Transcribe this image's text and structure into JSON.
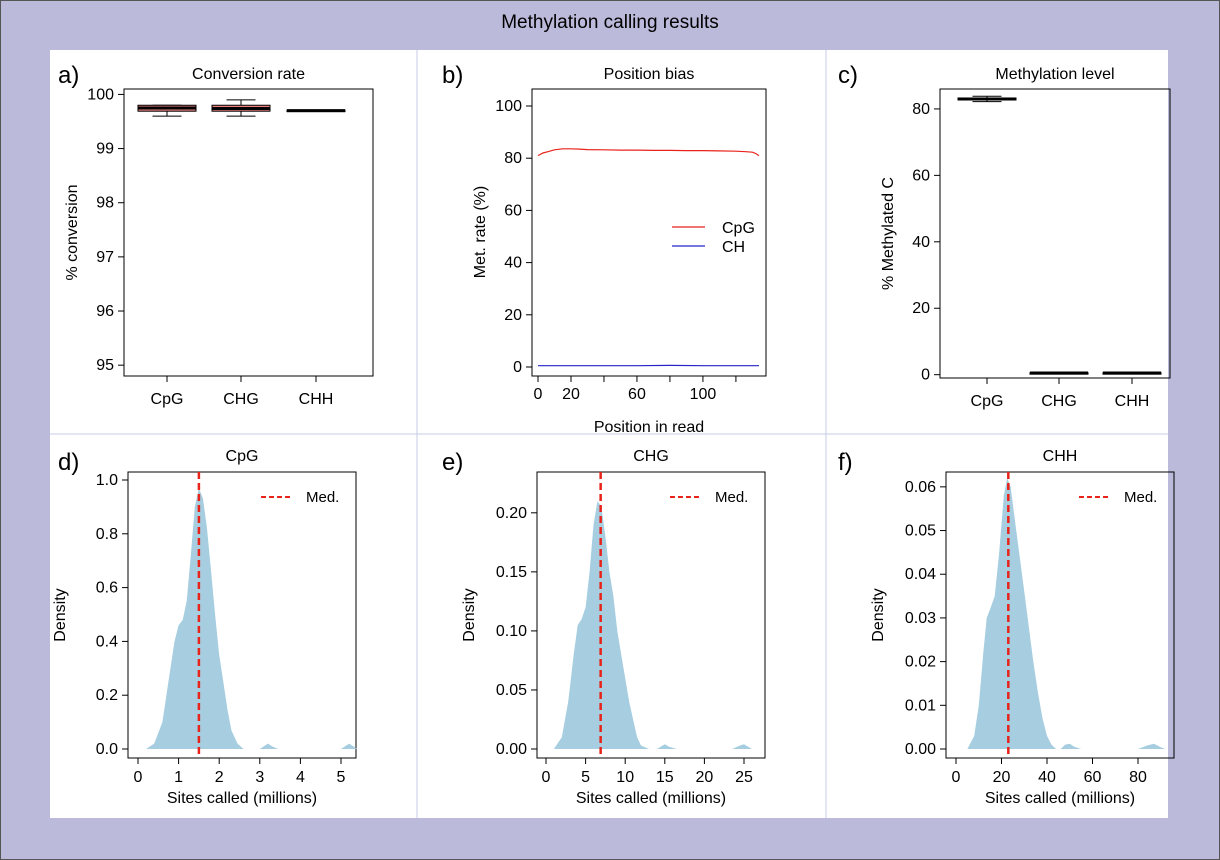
{
  "title": "Methylation calling results",
  "colors": {
    "frame_bg": "#bcbadb",
    "box_fill": "#f08080",
    "cpg_line": "#e8231a",
    "ch_line": "#2424c8",
    "density_fill": "#a6cee0",
    "median_line": "#e8231a"
  },
  "chart_data": [
    {
      "panel": "a)",
      "type": "box",
      "title": "Conversion rate",
      "xlabel": "",
      "ylabel": "% conversion",
      "categories": [
        "CpG",
        "CHG",
        "CHH"
      ],
      "ylim": [
        94.8,
        100.1
      ],
      "yticks": [
        95,
        96,
        97,
        98,
        99,
        100
      ],
      "boxes": [
        {
          "name": "CpG",
          "min": 99.6,
          "q1": 99.69,
          "median": 99.75,
          "q3": 99.8,
          "max": 99.8
        },
        {
          "name": "CHG",
          "min": 99.6,
          "q1": 99.69,
          "median": 99.74,
          "q3": 99.8,
          "max": 99.9
        },
        {
          "name": "CHH",
          "min": 99.69,
          "q1": 99.69,
          "median": 99.7,
          "q3": 99.71,
          "max": 99.71
        }
      ]
    },
    {
      "panel": "b)",
      "type": "line",
      "title": "Position bias",
      "xlabel": "Position in read",
      "ylabel": "Met. rate (%)",
      "xlim": [
        0,
        134
      ],
      "ylim": [
        0,
        100
      ],
      "xticks": [
        0,
        20,
        60,
        100
      ],
      "xtick_marks": [
        0,
        20,
        40,
        60,
        80,
        100,
        120
      ],
      "yticks": [
        0,
        20,
        40,
        60,
        80,
        100
      ],
      "legend": {
        "position": "right",
        "entries": [
          "CpG",
          "CH"
        ]
      },
      "series": [
        {
          "name": "CpG",
          "color": "#e8231a",
          "x": [
            0,
            3,
            6,
            10,
            15,
            20,
            25,
            30,
            40,
            50,
            60,
            70,
            80,
            90,
            100,
            110,
            120,
            126,
            130,
            132,
            134
          ],
          "y": [
            81,
            82,
            82.5,
            83.2,
            83.6,
            83.6,
            83.5,
            83.3,
            83.2,
            83.1,
            83.1,
            83.0,
            83.0,
            82.9,
            82.9,
            82.8,
            82.7,
            82.5,
            82.3,
            81.8,
            81
          ]
        },
        {
          "name": "CH",
          "color": "#2424c8",
          "x": [
            0,
            20,
            40,
            60,
            80,
            100,
            120,
            134
          ],
          "y": [
            0.5,
            0.5,
            0.5,
            0.5,
            0.6,
            0.5,
            0.5,
            0.5
          ]
        }
      ]
    },
    {
      "panel": "c)",
      "type": "box",
      "title": "Methylation level",
      "xlabel": "",
      "ylabel": "% Methylated C",
      "categories": [
        "CpG",
        "CHG",
        "CHH"
      ],
      "ylim": [
        -1,
        86
      ],
      "yticks": [
        0,
        20,
        40,
        60,
        80
      ],
      "boxes": [
        {
          "name": "CpG",
          "min": 82.2,
          "q1": 82.7,
          "median": 83.0,
          "q3": 83.3,
          "max": 83.8
        },
        {
          "name": "CHG",
          "min": 0.3,
          "q1": 0.4,
          "median": 0.5,
          "q3": 0.6,
          "max": 0.7
        },
        {
          "name": "CHH",
          "min": 0.3,
          "q1": 0.4,
          "median": 0.5,
          "q3": 0.6,
          "max": 0.7
        }
      ]
    },
    {
      "panel": "d)",
      "type": "area",
      "title": "CpG",
      "xlabel": "Sites called (millions)",
      "ylabel": "Density",
      "xlim": [
        -0.3,
        5.6
      ],
      "ylim": [
        0,
        1.0
      ],
      "xticks": [
        0,
        1,
        2,
        3,
        4,
        5
      ],
      "yticks": [
        0.0,
        0.2,
        0.4,
        0.6,
        0.8,
        1.0
      ],
      "ytick_labels": [
        "0.0",
        "0.2",
        "0.4",
        "0.6",
        "0.8",
        "1.0"
      ],
      "median": 1.5,
      "legend": {
        "position": "top-right",
        "entries": [
          "Med."
        ]
      },
      "x": [
        0.2,
        0.4,
        0.6,
        0.75,
        0.9,
        1.0,
        1.1,
        1.2,
        1.3,
        1.4,
        1.5,
        1.6,
        1.7,
        1.8,
        1.9,
        2.0,
        2.1,
        2.2,
        2.3,
        2.45,
        2.6,
        2.8,
        3.0,
        3.1,
        3.2,
        3.3,
        3.45,
        3.7,
        4.5,
        5.0,
        5.1,
        5.2,
        5.3,
        5.4
      ],
      "y": [
        0.0,
        0.02,
        0.1,
        0.25,
        0.4,
        0.46,
        0.48,
        0.55,
        0.72,
        0.9,
        0.97,
        0.93,
        0.82,
        0.66,
        0.5,
        0.35,
        0.25,
        0.15,
        0.07,
        0.02,
        0.0,
        0.0,
        0.0,
        0.01,
        0.02,
        0.01,
        0.0,
        0.0,
        0.0,
        0.0,
        0.01,
        0.02,
        0.01,
        0.0
      ]
    },
    {
      "panel": "e)",
      "type": "area",
      "title": "CHG",
      "xlabel": "Sites called (millions)",
      "ylabel": "Density",
      "xlim": [
        -1.5,
        27
      ],
      "ylim": [
        0,
        0.21
      ],
      "xticks": [
        0,
        5,
        10,
        15,
        20,
        25
      ],
      "yticks": [
        0.0,
        0.05,
        0.1,
        0.15,
        0.2
      ],
      "ytick_labels": [
        "0.00",
        "0.05",
        "0.10",
        "0.15",
        "0.20"
      ],
      "median": 6.9,
      "legend": {
        "position": "top-right",
        "entries": [
          "Med."
        ]
      },
      "x": [
        1.0,
        2.0,
        2.8,
        3.5,
        4.0,
        4.5,
        5.0,
        5.5,
        6.0,
        6.5,
        7.0,
        7.5,
        8.0,
        8.5,
        9.0,
        9.5,
        10.0,
        10.5,
        11.0,
        11.5,
        12.0,
        13.0,
        14.0,
        14.5,
        15.0,
        15.5,
        16.5,
        23.5,
        24.5,
        25.0,
        25.5,
        26.0
      ],
      "y": [
        0.0,
        0.01,
        0.04,
        0.08,
        0.105,
        0.11,
        0.12,
        0.15,
        0.19,
        0.21,
        0.205,
        0.18,
        0.15,
        0.13,
        0.1,
        0.08,
        0.06,
        0.04,
        0.025,
        0.01,
        0.003,
        0.0,
        0.0,
        0.002,
        0.004,
        0.002,
        0.0,
        0.0,
        0.003,
        0.004,
        0.002,
        0.0
      ]
    },
    {
      "panel": "f)",
      "type": "area",
      "title": "CHH",
      "xlabel": "Sites called (millions)",
      "ylabel": "Density",
      "xlim": [
        -5,
        94
      ],
      "ylim": [
        0,
        0.065
      ],
      "xticks": [
        0,
        20,
        40,
        60,
        80
      ],
      "yticks": [
        0.0,
        0.01,
        0.02,
        0.03,
        0.04,
        0.05,
        0.06
      ],
      "ytick_labels": [
        "0.00",
        "0.01",
        "0.02",
        "0.03",
        "0.04",
        "0.05",
        "0.06"
      ],
      "median": 23,
      "legend": {
        "position": "top-right",
        "entries": [
          "Med."
        ]
      },
      "x": [
        5,
        8,
        10,
        12,
        13.5,
        15,
        17,
        19,
        21,
        22.5,
        24,
        26,
        28,
        30,
        32,
        34,
        36,
        38,
        40,
        42,
        44,
        46,
        48,
        50,
        52,
        55,
        80,
        84,
        87,
        90,
        92
      ],
      "y": [
        0.0,
        0.003,
        0.01,
        0.022,
        0.03,
        0.032,
        0.035,
        0.045,
        0.058,
        0.062,
        0.06,
        0.052,
        0.044,
        0.036,
        0.028,
        0.02,
        0.013,
        0.007,
        0.003,
        0.001,
        0.0,
        0.0,
        0.001,
        0.0012,
        0.0005,
        0.0,
        0.0,
        0.0008,
        0.0012,
        0.0004,
        0.0
      ]
    }
  ]
}
